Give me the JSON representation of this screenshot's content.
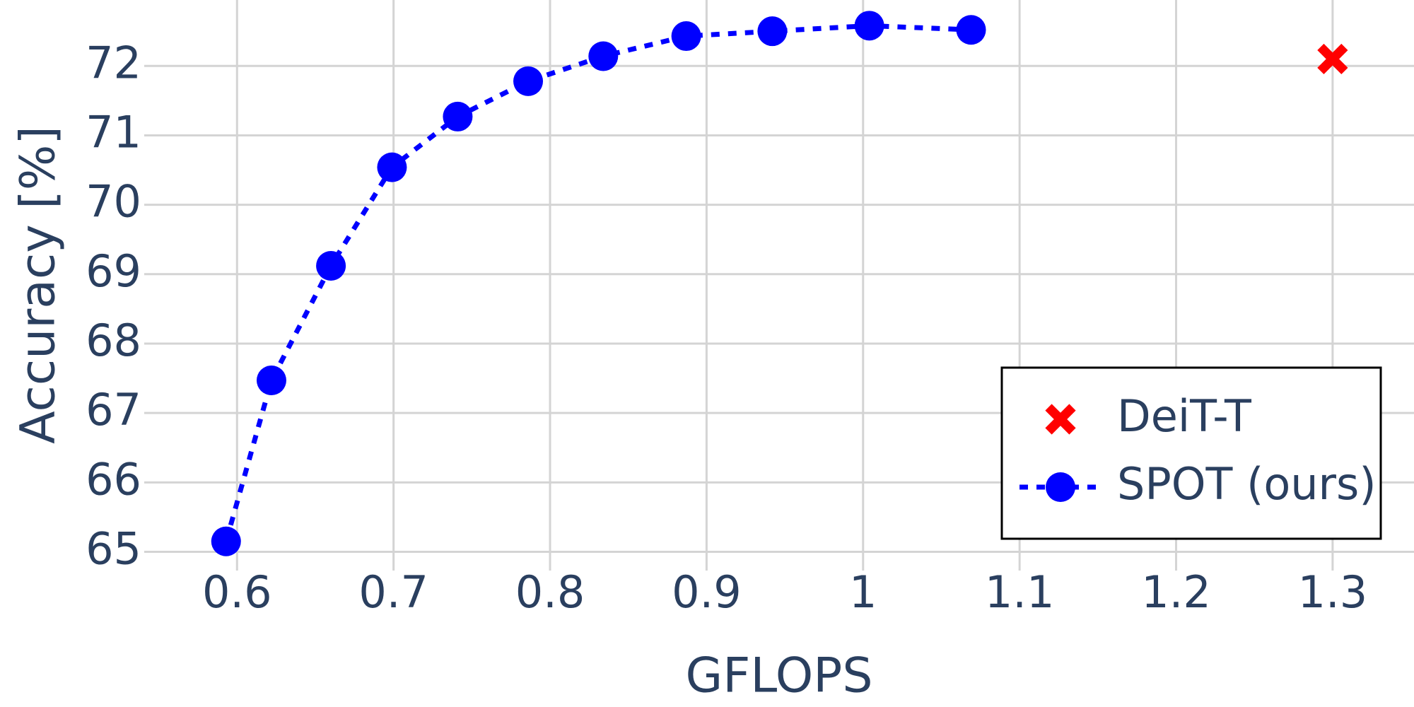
{
  "chart_data": {
    "type": "line",
    "x_label": "GFLOPS",
    "y_label": "Accuracy [%]",
    "xlim": [
      0.5407,
      1.352
    ],
    "ylim": [
      64.73,
      72.95
    ],
    "xticks": [
      0.6,
      0.7,
      0.8,
      0.9,
      1,
      1.1,
      1.2,
      1.3
    ],
    "yticks": [
      65,
      66,
      67,
      68,
      69,
      70,
      71,
      72
    ],
    "grid": true,
    "legend_position": "bottom-right",
    "series": [
      {
        "name": "DeiT-T",
        "color": "#ff0000",
        "marker": "x",
        "line": "none",
        "x": [
          1.3
        ],
        "values": [
          72.1
        ]
      },
      {
        "name": "SPOT (ours)",
        "color": "#0000ff",
        "marker": "circle",
        "line": "dot",
        "x": [
          0.593,
          0.622,
          0.66,
          0.699,
          0.741,
          0.786,
          0.834,
          0.887,
          0.942,
          1.004,
          1.069
        ],
        "values": [
          65.15,
          67.47,
          69.12,
          70.54,
          71.27,
          71.78,
          72.14,
          72.43,
          72.5,
          72.58,
          72.52
        ]
      }
    ]
  }
}
